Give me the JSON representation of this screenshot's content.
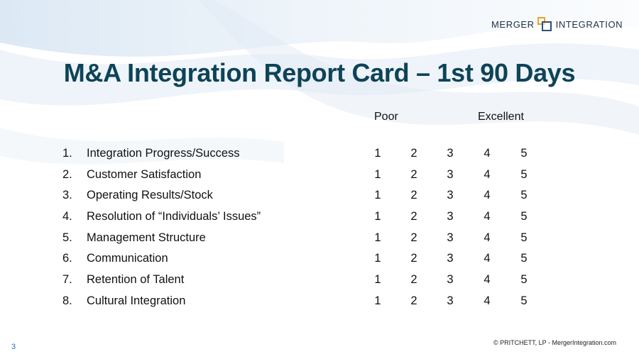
{
  "logo": {
    "left": "MERGER",
    "right": "INTEGRATION"
  },
  "title": "M&A Integration Report Card – 1st 90 Days",
  "scale": {
    "low": "Poor",
    "high": "Excellent"
  },
  "items": [
    {
      "num": "1.",
      "label": "Integration Progress/Success",
      "scores": [
        "1",
        "2",
        "3",
        "4",
        "5"
      ]
    },
    {
      "num": "2.",
      "label": "Customer Satisfaction",
      "scores": [
        "1",
        "2",
        "3",
        "4",
        "5"
      ]
    },
    {
      "num": "3.",
      "label": "Operating Results/Stock",
      "scores": [
        "1",
        "2",
        "3",
        "4",
        "5"
      ]
    },
    {
      "num": "4.",
      "label": "Resolution of “Individuals’ Issues”",
      "scores": [
        "1",
        "2",
        "3",
        "4",
        "5"
      ]
    },
    {
      "num": "5.",
      "label": "Management Structure",
      "scores": [
        "1",
        "2",
        "3",
        "4",
        "5"
      ]
    },
    {
      "num": "6.",
      "label": "Communication",
      "scores": [
        "1",
        "2",
        "3",
        "4",
        "5"
      ]
    },
    {
      "num": "7.",
      "label": "Retention of Talent",
      "scores": [
        "1",
        "2",
        "3",
        "4",
        "5"
      ]
    },
    {
      "num": "8.",
      "label": "Cultural Integration",
      "scores": [
        "1",
        "2",
        "3",
        "4",
        "5"
      ]
    }
  ],
  "footer": {
    "page": "3",
    "copyright": "© PRITCHETT, LP  -  MergerIntegration.com"
  }
}
